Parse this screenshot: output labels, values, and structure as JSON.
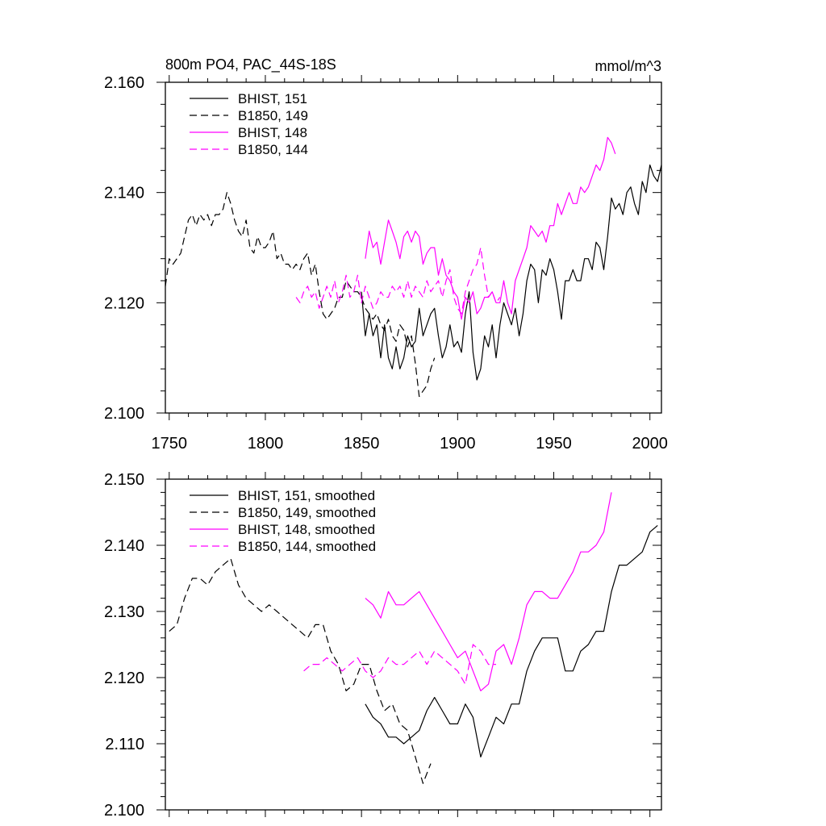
{
  "chart_data": [
    {
      "type": "line",
      "title": "800m PO4, PAC_44S-18S",
      "units": "mmol/m^3",
      "xlim": [
        1748,
        2006
      ],
      "ylim": [
        2.1,
        2.16
      ],
      "xticks": [
        1750,
        1800,
        1850,
        1900,
        1950,
        2000
      ],
      "xtick_labels": [
        "1750",
        "1800",
        "1850",
        "1900",
        "1950",
        "2000"
      ],
      "yticks": [
        2.1,
        2.12,
        2.14,
        2.16
      ],
      "ytick_labels": [
        "2.100",
        "2.120",
        "2.140",
        "2.160"
      ],
      "legend_position": "top-left",
      "grid": false,
      "series": [
        {
          "name": "BHIST, 151",
          "color": "#000000",
          "dash": "solid",
          "x": [
            1850,
            1852,
            1854,
            1856,
            1858,
            1860,
            1862,
            1864,
            1866,
            1868,
            1870,
            1872,
            1874,
            1876,
            1878,
            1880,
            1882,
            1884,
            1886,
            1888,
            1890,
            1892,
            1894,
            1896,
            1898,
            1900,
            1902,
            1904,
            1906,
            1908,
            1910,
            1912,
            1914,
            1916,
            1918,
            1920,
            1922,
            1924,
            1926,
            1928,
            1930,
            1932,
            1934,
            1936,
            1938,
            1940,
            1942,
            1944,
            1946,
            1948,
            1950,
            1952,
            1954,
            1956,
            1958,
            1960,
            1962,
            1964,
            1966,
            1968,
            1970,
            1972,
            1974,
            1976,
            1978,
            1980,
            1982,
            1984,
            1986,
            1988,
            1990,
            1992,
            1994,
            1996,
            1998,
            2000,
            2002,
            2004,
            2006
          ],
          "y": [
            2.122,
            2.114,
            2.118,
            2.114,
            2.116,
            2.11,
            2.116,
            2.11,
            2.108,
            2.112,
            2.108,
            2.11,
            2.114,
            2.112,
            2.113,
            2.119,
            2.114,
            2.116,
            2.118,
            2.119,
            2.114,
            2.11,
            2.112,
            2.116,
            2.112,
            2.113,
            2.111,
            2.118,
            2.122,
            2.111,
            2.106,
            2.108,
            2.114,
            2.112,
            2.116,
            2.11,
            2.116,
            2.12,
            2.118,
            2.116,
            2.119,
            2.114,
            2.118,
            2.124,
            2.127,
            2.126,
            2.12,
            2.126,
            2.125,
            2.128,
            2.126,
            2.122,
            2.117,
            2.124,
            2.124,
            2.126,
            2.124,
            2.124,
            2.128,
            2.128,
            2.126,
            2.131,
            2.13,
            2.126,
            2.132,
            2.139,
            2.137,
            2.138,
            2.136,
            2.14,
            2.141,
            2.138,
            2.136,
            2.142,
            2.14,
            2.145,
            2.143,
            2.142,
            2.145
          ]
        },
        {
          "name": "B1850, 149",
          "color": "#000000",
          "dash": "dashed",
          "x": [
            1748,
            1750,
            1752,
            1754,
            1756,
            1758,
            1760,
            1762,
            1764,
            1766,
            1768,
            1770,
            1772,
            1774,
            1776,
            1778,
            1780,
            1782,
            1784,
            1786,
            1788,
            1790,
            1792,
            1794,
            1796,
            1798,
            1800,
            1802,
            1804,
            1806,
            1808,
            1810,
            1812,
            1814,
            1816,
            1818,
            1820,
            1822,
            1824,
            1826,
            1828,
            1830,
            1832,
            1834,
            1836,
            1838,
            1840,
            1842,
            1844,
            1846,
            1848,
            1850,
            1852,
            1854,
            1856,
            1858,
            1860,
            1862,
            1864,
            1866,
            1868,
            1870,
            1872,
            1874,
            1876,
            1878,
            1880,
            1882,
            1884,
            1886,
            1888
          ],
          "y": [
            2.123,
            2.128,
            2.127,
            2.128,
            2.129,
            2.132,
            2.135,
            2.136,
            2.134,
            2.136,
            2.135,
            2.136,
            2.134,
            2.136,
            2.136,
            2.137,
            2.14,
            2.138,
            2.135,
            2.133,
            2.132,
            2.135,
            2.13,
            2.129,
            2.132,
            2.13,
            2.13,
            2.131,
            2.133,
            2.128,
            2.129,
            2.127,
            2.127,
            2.126,
            2.127,
            2.126,
            2.128,
            2.129,
            2.125,
            2.127,
            2.122,
            2.118,
            2.117,
            2.118,
            2.119,
            2.121,
            2.121,
            2.124,
            2.123,
            2.122,
            2.122,
            2.121,
            2.119,
            2.118,
            2.117,
            2.118,
            2.116,
            2.115,
            2.117,
            2.114,
            2.113,
            2.116,
            2.115,
            2.112,
            2.114,
            2.109,
            2.103,
            2.104,
            2.105,
            2.108,
            2.11
          ]
        },
        {
          "name": "BHIST, 148",
          "color": "#ff00ff",
          "dash": "solid",
          "x": [
            1852,
            1854,
            1856,
            1858,
            1860,
            1862,
            1864,
            1866,
            1868,
            1870,
            1872,
            1874,
            1876,
            1878,
            1880,
            1882,
            1884,
            1886,
            1888,
            1890,
            1892,
            1894,
            1896,
            1898,
            1900,
            1902,
            1904,
            1906,
            1908,
            1910,
            1912,
            1914,
            1916,
            1918,
            1920,
            1922,
            1924,
            1926,
            1928,
            1930,
            1932,
            1934,
            1936,
            1938,
            1940,
            1942,
            1944,
            1946,
            1948,
            1950,
            1952,
            1954,
            1956,
            1958,
            1960,
            1962,
            1964,
            1966,
            1968,
            1970,
            1972,
            1974,
            1976,
            1978,
            1980,
            1982
          ],
          "y": [
            2.128,
            2.133,
            2.13,
            2.131,
            2.127,
            2.131,
            2.135,
            2.133,
            2.131,
            2.128,
            2.132,
            2.133,
            2.131,
            2.133,
            2.132,
            2.127,
            2.129,
            2.13,
            2.13,
            2.125,
            2.128,
            2.125,
            2.124,
            2.122,
            2.121,
            2.117,
            2.121,
            2.12,
            2.122,
            2.118,
            2.119,
            2.121,
            2.121,
            2.122,
            2.12,
            2.12,
            2.124,
            2.12,
            2.118,
            2.124,
            2.126,
            2.128,
            2.13,
            2.134,
            2.133,
            2.132,
            2.133,
            2.131,
            2.134,
            2.134,
            2.138,
            2.136,
            2.138,
            2.14,
            2.138,
            2.138,
            2.141,
            2.14,
            2.141,
            2.143,
            2.145,
            2.144,
            2.146,
            2.15,
            2.149,
            2.147
          ]
        },
        {
          "name": "B1850, 144",
          "color": "#ff00ff",
          "dash": "dashed",
          "x": [
            1816,
            1818,
            1820,
            1822,
            1824,
            1826,
            1828,
            1830,
            1832,
            1834,
            1836,
            1838,
            1840,
            1842,
            1844,
            1846,
            1848,
            1850,
            1852,
            1854,
            1856,
            1858,
            1860,
            1862,
            1864,
            1866,
            1868,
            1870,
            1872,
            1874,
            1876,
            1878,
            1880,
            1882,
            1884,
            1886,
            1888,
            1890,
            1892,
            1894,
            1896,
            1898,
            1900,
            1902,
            1904,
            1906,
            1908,
            1910,
            1912,
            1914,
            1916,
            1918,
            1920,
            1922
          ],
          "y": [
            2.121,
            2.12,
            2.122,
            2.123,
            2.121,
            2.122,
            2.119,
            2.121,
            2.123,
            2.121,
            2.124,
            2.12,
            2.122,
            2.125,
            2.121,
            2.122,
            2.125,
            2.12,
            2.123,
            2.121,
            2.119,
            2.12,
            2.122,
            2.121,
            2.121,
            2.123,
            2.122,
            2.123,
            2.121,
            2.124,
            2.121,
            2.123,
            2.122,
            2.121,
            2.124,
            2.122,
            2.123,
            2.124,
            2.121,
            2.124,
            2.126,
            2.121,
            2.119,
            2.118,
            2.122,
            2.124,
            2.126,
            2.127,
            2.13,
            2.125,
            2.121,
            2.122,
            2.12,
            2.121
          ]
        }
      ]
    },
    {
      "type": "line",
      "xlim": [
        1748,
        2006
      ],
      "ylim": [
        2.1,
        2.15
      ],
      "xticks": [
        1750,
        1800,
        1850,
        1900,
        1950,
        2000
      ],
      "yticks": [
        2.1,
        2.11,
        2.12,
        2.13,
        2.14,
        2.15
      ],
      "ytick_labels": [
        "2.100",
        "2.110",
        "2.120",
        "2.130",
        "2.140",
        "2.150"
      ],
      "legend_position": "top-left",
      "grid": false,
      "series": [
        {
          "name": "BHIST, 151, smoothed",
          "color": "#000000",
          "dash": "solid",
          "x": [
            1852,
            1856,
            1860,
            1864,
            1868,
            1872,
            1876,
            1880,
            1884,
            1888,
            1892,
            1896,
            1900,
            1904,
            1908,
            1912,
            1916,
            1920,
            1924,
            1928,
            1932,
            1936,
            1940,
            1944,
            1948,
            1952,
            1956,
            1960,
            1964,
            1968,
            1972,
            1976,
            1980,
            1984,
            1988,
            1992,
            1996,
            2000,
            2004
          ],
          "y": [
            2.116,
            2.114,
            2.113,
            2.111,
            2.111,
            2.11,
            2.111,
            2.112,
            2.115,
            2.117,
            2.115,
            2.113,
            2.113,
            2.116,
            2.114,
            2.108,
            2.111,
            2.114,
            2.113,
            2.116,
            2.116,
            2.121,
            2.124,
            2.126,
            2.126,
            2.126,
            2.121,
            2.121,
            2.124,
            2.125,
            2.127,
            2.127,
            2.133,
            2.137,
            2.137,
            2.138,
            2.139,
            2.142,
            2.143
          ]
        },
        {
          "name": "B1850, 149, smoothed",
          "color": "#000000",
          "dash": "dashed",
          "x": [
            1750,
            1754,
            1758,
            1762,
            1766,
            1770,
            1774,
            1778,
            1782,
            1786,
            1790,
            1794,
            1798,
            1802,
            1806,
            1810,
            1814,
            1818,
            1822,
            1826,
            1830,
            1834,
            1838,
            1842,
            1846,
            1850,
            1854,
            1858,
            1862,
            1866,
            1870,
            1874,
            1878,
            1882,
            1886
          ],
          "y": [
            2.127,
            2.128,
            2.132,
            2.135,
            2.135,
            2.134,
            2.136,
            2.137,
            2.138,
            2.134,
            2.132,
            2.131,
            2.13,
            2.131,
            2.13,
            2.129,
            2.128,
            2.127,
            2.126,
            2.128,
            2.128,
            2.124,
            2.122,
            2.118,
            2.119,
            2.122,
            2.122,
            2.118,
            2.115,
            2.116,
            2.113,
            2.112,
            2.108,
            2.104,
            2.107
          ]
        },
        {
          "name": "BHIST, 148, smoothed",
          "color": "#ff00ff",
          "dash": "solid",
          "x": [
            1852,
            1856,
            1860,
            1864,
            1868,
            1872,
            1876,
            1880,
            1884,
            1888,
            1892,
            1896,
            1900,
            1904,
            1908,
            1912,
            1916,
            1920,
            1924,
            1928,
            1932,
            1936,
            1940,
            1944,
            1948,
            1952,
            1956,
            1960,
            1964,
            1968,
            1972,
            1976,
            1980
          ],
          "y": [
            2.132,
            2.131,
            2.129,
            2.133,
            2.131,
            2.131,
            2.132,
            2.133,
            2.131,
            2.129,
            2.127,
            2.125,
            2.123,
            2.124,
            2.121,
            2.118,
            2.119,
            2.124,
            2.125,
            2.122,
            2.126,
            2.131,
            2.133,
            2.133,
            2.132,
            2.132,
            2.134,
            2.136,
            2.139,
            2.139,
            2.14,
            2.142,
            2.148
          ]
        },
        {
          "name": "B1850, 144, smoothed",
          "color": "#ff00ff",
          "dash": "dashed",
          "x": [
            1820,
            1824,
            1828,
            1832,
            1836,
            1840,
            1844,
            1848,
            1852,
            1856,
            1860,
            1864,
            1868,
            1872,
            1876,
            1880,
            1884,
            1888,
            1892,
            1896,
            1900,
            1904,
            1908,
            1912,
            1916,
            1920
          ],
          "y": [
            2.121,
            2.122,
            2.122,
            2.123,
            2.122,
            2.121,
            2.122,
            2.123,
            2.121,
            2.12,
            2.121,
            2.123,
            2.122,
            2.122,
            2.123,
            2.124,
            2.122,
            2.124,
            2.123,
            2.122,
            2.121,
            2.119,
            2.125,
            2.124,
            2.122,
            2.122
          ]
        }
      ]
    }
  ]
}
